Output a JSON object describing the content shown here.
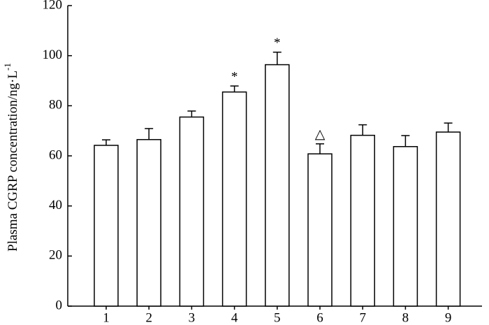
{
  "chart_data": {
    "type": "bar",
    "y_label": "Plasma CGRP concentration/ng·L",
    "y_label_superscript": "-1",
    "categories": [
      "1",
      "2",
      "3",
      "4",
      "5",
      "6",
      "7",
      "8",
      "9"
    ],
    "values": [
      64.2,
      66.5,
      75.5,
      85.5,
      96.4,
      60.8,
      68.2,
      63.7,
      69.5
    ],
    "errors": [
      2.2,
      4.4,
      2.4,
      2.4,
      5.0,
      4.0,
      4.2,
      4.4,
      3.6
    ],
    "annotations": [
      null,
      null,
      null,
      "*",
      "*",
      "△",
      null,
      null,
      null
    ],
    "color": "#ffffff",
    "ylim": [
      0,
      120
    ],
    "yticks": [
      0,
      20,
      40,
      60,
      80,
      100,
      120
    ]
  }
}
